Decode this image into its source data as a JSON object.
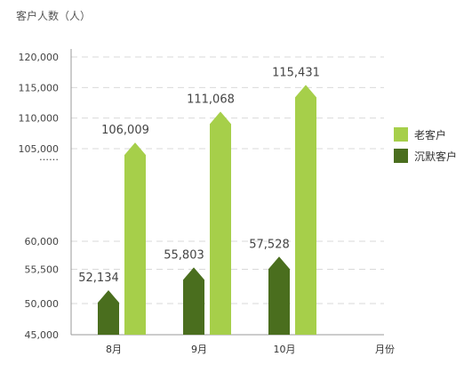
{
  "chart_data": {
    "type": "bar",
    "ylabel": "客户人数（人）",
    "xlabel": "月份",
    "categories": [
      "8月",
      "9月",
      "10月"
    ],
    "series": [
      {
        "name": "沉默客户",
        "values": [
          52134,
          55803,
          57528
        ],
        "labels": [
          "52,134",
          "55,803",
          "57,528"
        ],
        "color": "#4a6e1e"
      },
      {
        "name": "老客户",
        "values": [
          106009,
          111068,
          115431
        ],
        "labels": [
          "106,009",
          "111,068",
          "115,431"
        ],
        "color": "#a6cf4a"
      }
    ],
    "y_ticks_lower": [
      "45,000",
      "50,000",
      "55,500",
      "60,000"
    ],
    "y_ticks_upper": [
      "105,000",
      "110,000",
      "115,000",
      "120,000"
    ],
    "axis_break_label": "……",
    "grid": true,
    "legend_position": "right",
    "bar_shape": "arrow"
  }
}
